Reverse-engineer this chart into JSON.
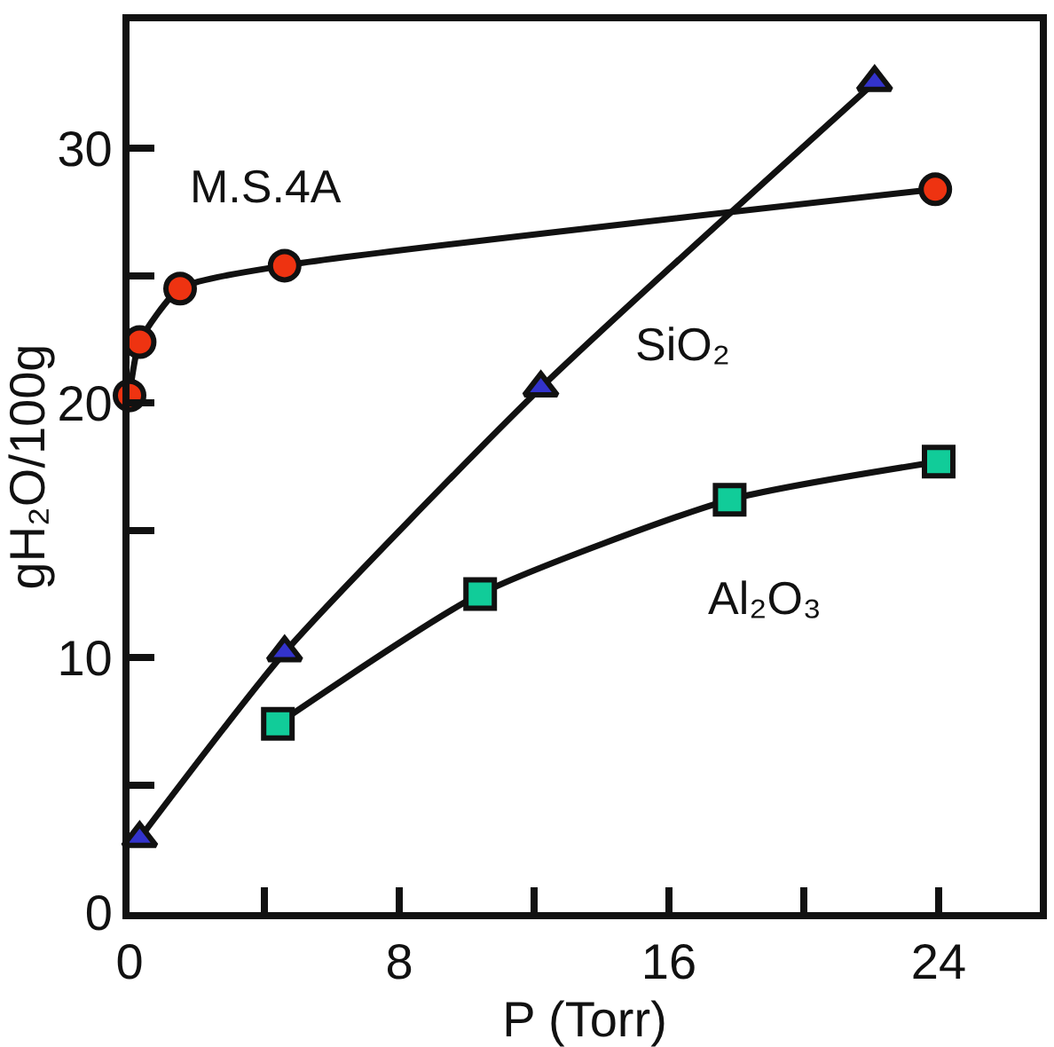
{
  "chart_data": {
    "type": "line",
    "xlabel": "P (Torr)",
    "ylabel": "gH₂O/100g",
    "xlim": [
      0,
      27
    ],
    "ylim": [
      0,
      35
    ],
    "xticks": [
      0,
      {
        "value": 4,
        "label": null
      },
      8,
      {
        "value": 12,
        "label": null
      },
      16,
      {
        "value": 20,
        "label": null
      },
      24
    ],
    "yticks": [
      0,
      {
        "value": 5,
        "label": null
      },
      10,
      {
        "value": 15,
        "label": null
      },
      20,
      {
        "value": 25,
        "label": null
      },
      30
    ],
    "grid": false,
    "legend": false,
    "line_style": "solid",
    "series": [
      {
        "name": "M.S.4A",
        "color": "#ee3311",
        "marker": "circle",
        "x": [
          0,
          0.3,
          1.5,
          4.6,
          23.9
        ],
        "values": [
          20.3,
          22.4,
          24.5,
          25.4,
          28.4
        ]
      },
      {
        "name": "SiO₂",
        "color": "#3333cc",
        "marker": "triangle",
        "x": [
          0.3,
          4.6,
          12.2,
          22.1
        ],
        "values": [
          2.9,
          10.2,
          20.6,
          32.6
        ]
      },
      {
        "name": "Al₂O₃",
        "color": "#11cc99",
        "marker": "square",
        "x": [
          4.4,
          10.4,
          17.8,
          24
        ],
        "values": [
          7.4,
          12.5,
          16.2,
          17.7
        ]
      }
    ]
  }
}
